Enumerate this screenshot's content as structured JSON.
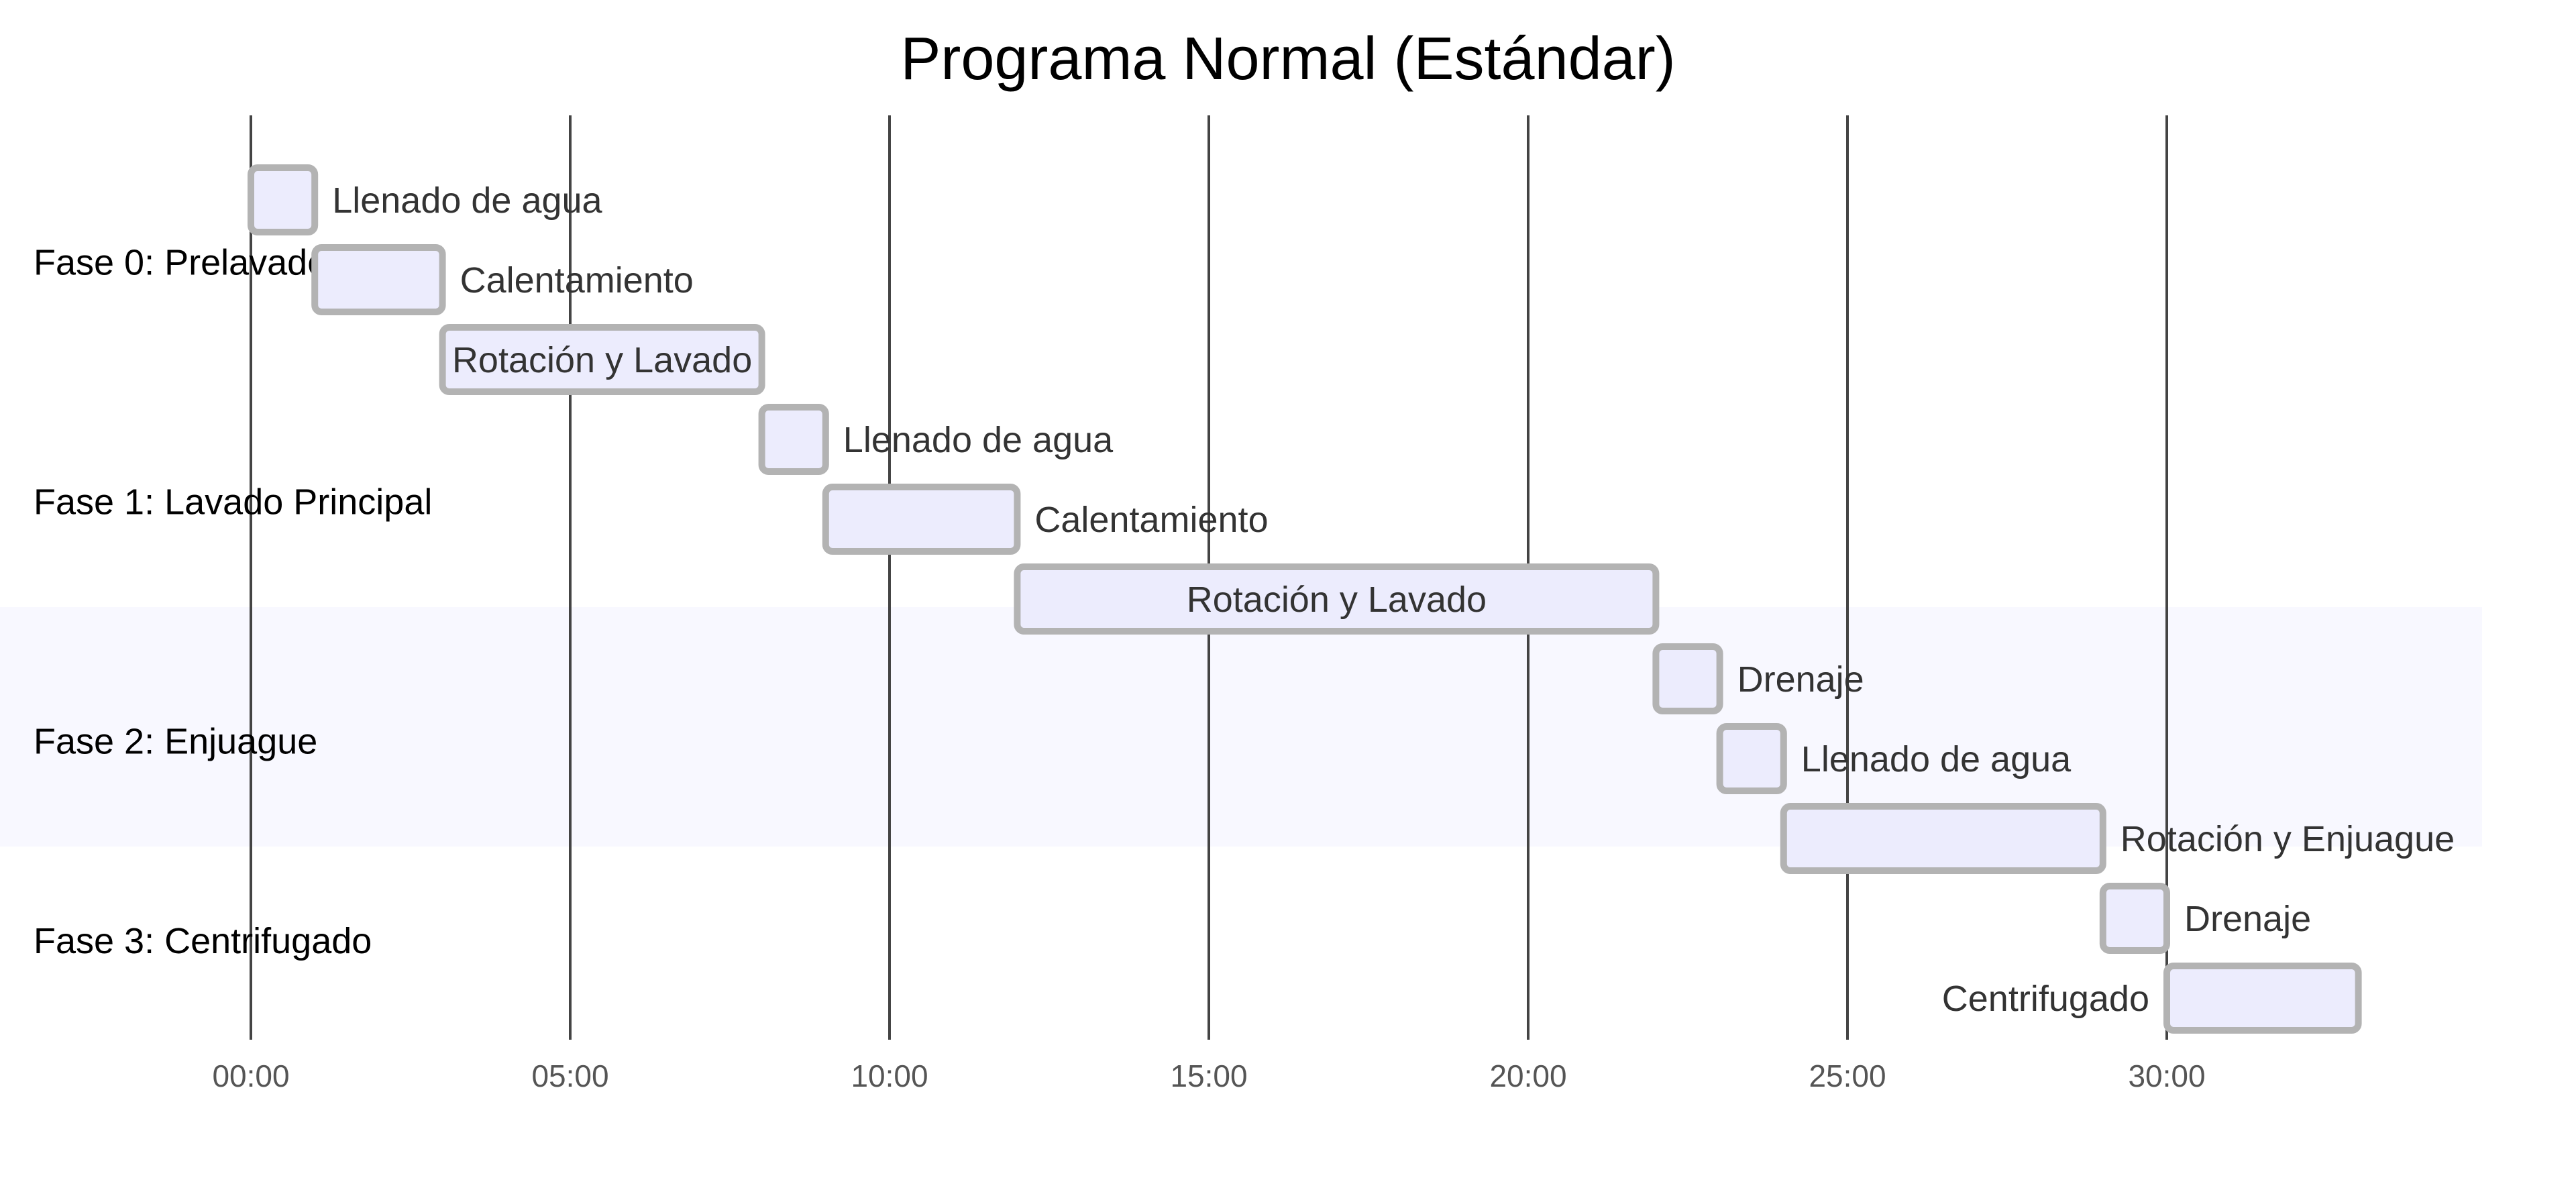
{
  "chart_data": {
    "type": "gantt",
    "title": "Programa Normal (Estándar)",
    "x_unit": "mm:ss",
    "xlim": [
      "00:00",
      "35:00"
    ],
    "ticks": [
      "00:00",
      "05:00",
      "10:00",
      "15:00",
      "20:00",
      "25:00",
      "30:00"
    ],
    "sections": [
      {
        "name": "Fase 0: Prelavado",
        "highlighted": false
      },
      {
        "name": "Fase 1: Lavado Principal",
        "highlighted": false
      },
      {
        "name": "Fase 2: Enjuague",
        "highlighted": true
      },
      {
        "name": "Fase 3: Centrifugado",
        "highlighted": false
      }
    ],
    "tasks": [
      {
        "section": 0,
        "label": "Llenado de agua",
        "start": "00:00",
        "end": "01:00"
      },
      {
        "section": 0,
        "label": "Calentamiento",
        "start": "01:00",
        "end": "03:00"
      },
      {
        "section": 0,
        "label": "Rotación y Lavado",
        "start": "03:00",
        "end": "08:00"
      },
      {
        "section": 1,
        "label": "Llenado de agua",
        "start": "08:00",
        "end": "09:00"
      },
      {
        "section": 1,
        "label": "Calentamiento",
        "start": "09:00",
        "end": "12:00"
      },
      {
        "section": 1,
        "label": "Rotación y Lavado",
        "start": "12:00",
        "end": "22:00"
      },
      {
        "section": 2,
        "label": "Drenaje",
        "start": "22:00",
        "end": "23:00"
      },
      {
        "section": 2,
        "label": "Llenado de agua",
        "start": "23:00",
        "end": "24:00"
      },
      {
        "section": 2,
        "label": "Rotación y Enjuague",
        "start": "24:00",
        "end": "29:00"
      },
      {
        "section": 3,
        "label": "Drenaje",
        "start": "29:00",
        "end": "30:00"
      },
      {
        "section": 3,
        "label": "Centrifugado",
        "start": "30:00",
        "end": "33:00"
      }
    ],
    "colors": {
      "bar_fill": "#ececfd",
      "bar_stroke": "#b3b3b3",
      "highlight_band": "#f8f8ff",
      "grid": "#444444"
    }
  }
}
